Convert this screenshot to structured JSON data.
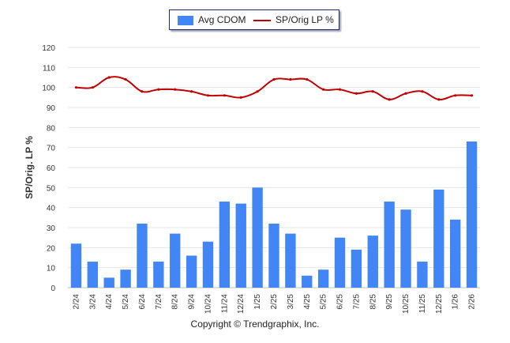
{
  "legend": {
    "bar_label": "Avg CDOM",
    "line_label": "SP/Orig LP %"
  },
  "footer": {
    "copyright": "Copyright © Trendgraphix, Inc."
  },
  "colors": {
    "bar": "#4285f4",
    "line": "#c00000",
    "grid": "#e6e6e6",
    "axis_text": "#333333"
  },
  "chart_data": {
    "type": "bar",
    "title": "",
    "xlabel": "",
    "ylabel": "SP/Orig. LP %",
    "ylim": [
      0,
      120
    ],
    "yticks": [
      0,
      10,
      20,
      30,
      40,
      50,
      60,
      70,
      80,
      90,
      100,
      110,
      120
    ],
    "grid": true,
    "legend_position": "top-center",
    "categories": [
      "2/24",
      "3/24",
      "4/24",
      "5/24",
      "6/24",
      "7/24",
      "8/24",
      "9/24",
      "10/24",
      "11/24",
      "12/24",
      "1/25",
      "2/25",
      "3/25",
      "4/25",
      "5/25",
      "6/25",
      "7/25",
      "8/25",
      "9/25",
      "10/25",
      "11/25",
      "12/25",
      "1/26",
      "2/26"
    ],
    "series": [
      {
        "name": "Avg CDOM",
        "type": "bar",
        "values": [
          22,
          13,
          5,
          9,
          32,
          13,
          27,
          16,
          23,
          43,
          42,
          50,
          32,
          27,
          6,
          9,
          25,
          19,
          26,
          43,
          39,
          13,
          49,
          34,
          73
        ]
      },
      {
        "name": "SP/Orig LP %",
        "type": "line",
        "values": [
          100,
          100,
          105,
          104,
          98,
          99,
          99,
          98,
          96,
          96,
          95,
          98,
          104,
          104,
          104,
          99,
          99,
          97,
          98,
          94,
          97,
          98,
          94,
          96,
          96
        ]
      }
    ]
  }
}
